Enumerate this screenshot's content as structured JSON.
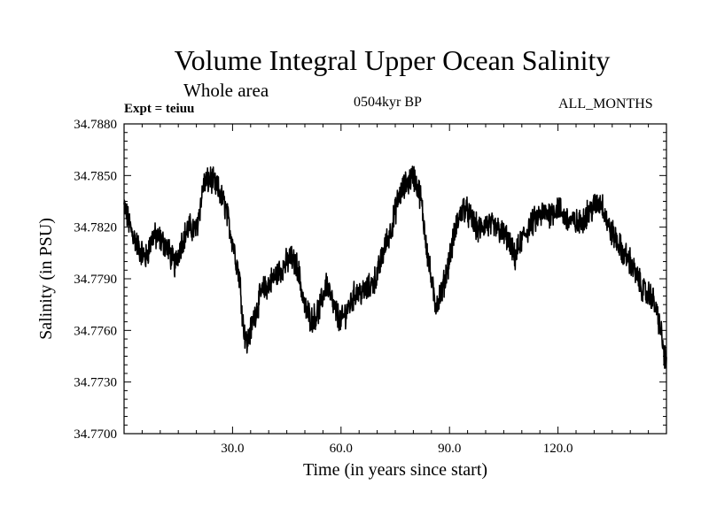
{
  "chart_data": {
    "type": "line",
    "title": "Volume Integral Upper Ocean Salinity",
    "subtitle": "Whole area",
    "experiment": "Expt = teiuu",
    "period": "0504kyr BP",
    "months": "ALL_MONTHS",
    "xlabel": "Time (in years since start)",
    "ylabel": "Salinity (in PSU)",
    "xlim": [
      0,
      150
    ],
    "ylim": [
      34.77,
      34.788
    ],
    "x_ticks": [
      30,
      60,
      90,
      120
    ],
    "x_tick_labels": [
      "30.0",
      "60.0",
      "90.0",
      "120.0"
    ],
    "y_ticks": [
      34.77,
      34.773,
      34.776,
      34.779,
      34.782,
      34.785,
      34.788
    ],
    "y_tick_labels": [
      "34.7700",
      "34.7730",
      "34.7760",
      "34.7790",
      "34.7820",
      "34.7850",
      "34.7880"
    ],
    "line_color": "#000000",
    "series": [
      {
        "name": "salinity",
        "x": [
          0,
          2,
          4,
          6,
          8,
          10,
          12,
          14,
          16,
          18,
          20,
          22,
          24,
          26,
          28,
          30,
          32,
          33,
          34,
          36,
          38,
          40,
          42,
          44,
          46,
          48,
          50,
          52,
          54,
          56,
          58,
          60,
          62,
          64,
          66,
          68,
          70,
          72,
          74,
          76,
          78,
          80,
          82,
          84,
          86,
          88,
          90,
          92,
          94,
          96,
          98,
          100,
          102,
          104,
          106,
          108,
          110,
          112,
          114,
          116,
          118,
          120,
          122,
          124,
          126,
          128,
          130,
          132,
          134,
          136,
          138,
          140,
          142,
          144,
          146,
          148,
          150
        ],
        "y": [
          34.7832,
          34.7818,
          34.7808,
          34.7802,
          34.7815,
          34.7813,
          34.7808,
          34.7798,
          34.7812,
          34.782,
          34.7818,
          34.7845,
          34.7848,
          34.7842,
          34.7832,
          34.7812,
          34.779,
          34.7762,
          34.7752,
          34.7768,
          34.7782,
          34.7787,
          34.7792,
          34.7797,
          34.7802,
          34.7797,
          34.7773,
          34.7766,
          34.7772,
          34.7788,
          34.7773,
          34.7765,
          34.7773,
          34.7782,
          34.7782,
          34.7785,
          34.7792,
          34.7808,
          34.782,
          34.7838,
          34.7845,
          34.785,
          34.7838,
          34.7803,
          34.7775,
          34.7783,
          34.7802,
          34.7822,
          34.7832,
          34.7825,
          34.7818,
          34.7822,
          34.782,
          34.7818,
          34.7813,
          34.7802,
          34.7813,
          34.782,
          34.7825,
          34.7828,
          34.7828,
          34.7832,
          34.7825,
          34.7823,
          34.7822,
          34.7828,
          34.7832,
          34.7835,
          34.782,
          34.7813,
          34.7805,
          34.78,
          34.779,
          34.7782,
          34.778,
          34.7765,
          34.7738
        ]
      }
    ]
  }
}
